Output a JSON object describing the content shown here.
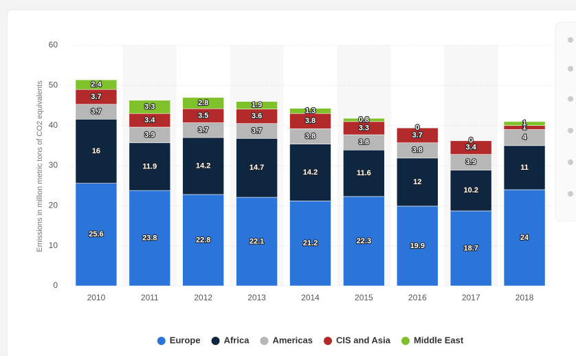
{
  "chart_data": {
    "type": "stacked_bar",
    "y_label": "Emissions in million metric tons of CO2 equivalents",
    "categories": [
      "2010",
      "2011",
      "2012",
      "2013",
      "2014",
      "2015",
      "2016",
      "2017",
      "2018"
    ],
    "series": [
      {
        "name": "Europe",
        "color": "#2b74d9",
        "values": [
          25.6,
          23.8,
          22.8,
          22.1,
          21.2,
          22.3,
          19.9,
          18.7,
          24
        ]
      },
      {
        "name": "Africa",
        "color": "#0e2640",
        "values": [
          16,
          11.9,
          14.2,
          14.7,
          14.2,
          11.6,
          12,
          10.2,
          11
        ]
      },
      {
        "name": "Americas",
        "color": "#b7b7b7",
        "values": [
          3.7,
          3.9,
          3.7,
          3.7,
          3.8,
          3.8,
          3.8,
          3.9,
          4
        ]
      },
      {
        "name": "CIS and Asia",
        "color": "#b22a2a",
        "values": [
          3.7,
          3.4,
          3.5,
          3.6,
          3.8,
          3.3,
          3.7,
          3.4,
          1
        ]
      },
      {
        "name": "Middle East",
        "color": "#7fc12b",
        "values": [
          2.4,
          3.3,
          2.8,
          1.9,
          1.3,
          0.8,
          0,
          0,
          1
        ]
      }
    ],
    "ylim": [
      0,
      60
    ],
    "yticks": [
      0,
      10,
      20,
      30,
      40,
      50,
      60
    ],
    "grid": true,
    "legend": "bottom"
  }
}
